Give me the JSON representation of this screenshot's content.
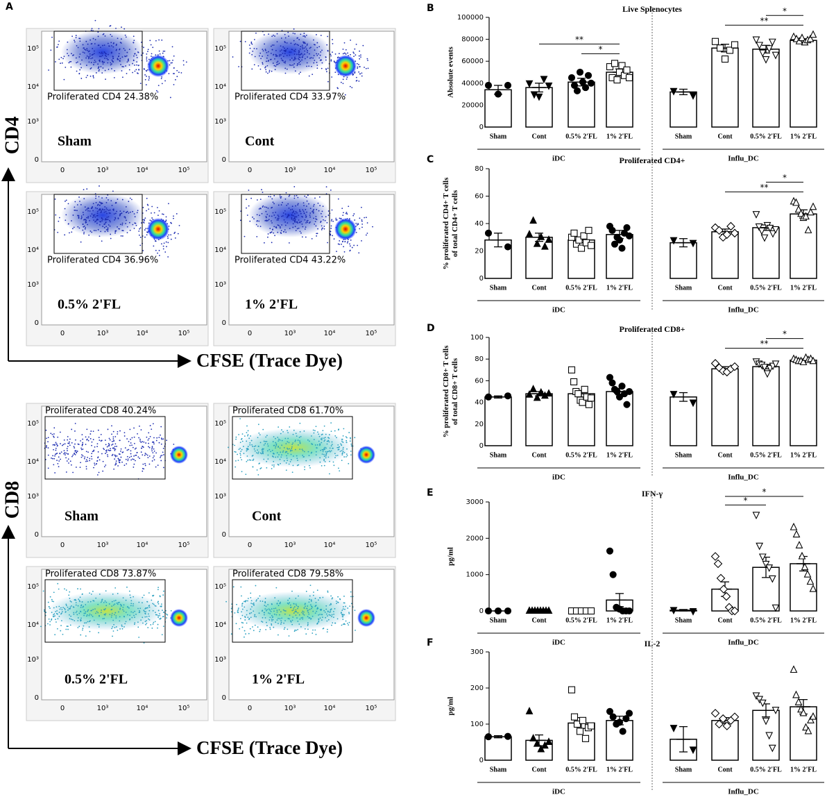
{
  "panel_a": {
    "label": "A",
    "x_tick_labels": [
      "0",
      "10³",
      "10⁴",
      "10⁵"
    ],
    "y_tick_labels": [
      "10⁵",
      "10⁴",
      "10³",
      "0"
    ],
    "cd4": {
      "y_axis_label": "CD4",
      "x_axis_label": "CFSE (Trace Dye)",
      "plots": [
        {
          "name": "Sham",
          "gate": "Proliferated CD4 24.38%"
        },
        {
          "name": "Cont",
          "gate": "Proliferated CD4 33.97%"
        },
        {
          "name": "0.5% 2'FL",
          "gate": "Proliferated CD4 36.96%"
        },
        {
          "name": "1% 2'FL",
          "gate": "Proliferated CD4 43.22%"
        }
      ]
    },
    "cd8": {
      "y_axis_label": "CD8",
      "x_axis_label": "CFSE (Trace Dye)",
      "plots": [
        {
          "name": "Sham",
          "gate": "Proliferated CD8 40.24%"
        },
        {
          "name": "Cont",
          "gate": "Proliferated CD8 61.70%"
        },
        {
          "name": "0.5% 2'FL",
          "gate": "Proliferated CD8 73.87%"
        },
        {
          "name": "1% 2'FL",
          "gate": "Proliferated CD8 79.58%"
        }
      ]
    }
  },
  "chart_data": [
    {
      "type": "bar",
      "label": "B",
      "title": "Live Splenocytes",
      "ylabel": [
        "Absolute events"
      ],
      "ylim": [
        0,
        100000
      ],
      "yticks": [
        0,
        20000,
        40000,
        60000,
        80000,
        100000
      ],
      "groups": [
        {
          "name": "iDC",
          "categories": [
            "Sham",
            "Cont",
            "0.5% 2'FL",
            "1% 2'FL"
          ],
          "values": [
            34000,
            36000,
            41000,
            50000
          ],
          "errors": [
            4000,
            4000,
            3500,
            3000
          ],
          "markers": [
            "circle",
            "triangle-down",
            "circle",
            "square-open"
          ],
          "points": [
            [
              38000,
              30000,
              38000
            ],
            [
              40000,
              30000,
              28000,
              44000,
              38000
            ],
            [
              45000,
              38000,
              33000,
              50000,
              41000,
              36000,
              47000,
              40000
            ],
            [
              55000,
              45000,
              58000,
              43000,
              50000,
              56000,
              47000,
              52000,
              45000
            ]
          ]
        },
        {
          "name": "Influ_DC",
          "categories": [
            "Sham",
            "Cont",
            "0.5% 2'FL",
            "1% 2'FL"
          ],
          "values": [
            32000,
            72000,
            71000,
            79000
          ],
          "errors": [
            2500,
            3500,
            3500,
            1500
          ],
          "markers": [
            "triangle-down",
            "square-open",
            "triangle-down-open",
            "triangle-up-open"
          ],
          "points": [
            [
              33000,
              29000
            ],
            [
              78000,
              72000,
              62000,
              70000,
              75000
            ],
            [
              80000,
              75000,
              68000,
              62000,
              72000,
              78000,
              66000
            ],
            [
              82000,
              80000,
              78000,
              81000,
              77000,
              79000,
              80000,
              84000
            ]
          ]
        }
      ],
      "significance": [
        {
          "group": 0,
          "from": 2,
          "to": 3,
          "label": "*"
        },
        {
          "group": 0,
          "from": 1,
          "to": 3,
          "label": "**"
        },
        {
          "group": 1,
          "from": 1,
          "to": 3,
          "label": "**"
        },
        {
          "group": 1,
          "from": 2,
          "to": 3,
          "label": "*"
        }
      ]
    },
    {
      "type": "bar",
      "label": "C",
      "title": "Proliferated CD4+",
      "ylabel": [
        "% proliferated CD4+ T cells",
        "of total CD4+ T cells"
      ],
      "ylim": [
        0,
        80
      ],
      "yticks": [
        0,
        20,
        40,
        60,
        80
      ],
      "groups": [
        {
          "name": "iDC",
          "categories": [
            "Sham",
            "Cont",
            "0.5% 2'FL",
            "1% 2'FL"
          ],
          "values": [
            28,
            30,
            28,
            32
          ],
          "errors": [
            5,
            3,
            2,
            3
          ],
          "markers": [
            "circle",
            "triangle-up",
            "square-open",
            "circle"
          ],
          "points": [
            [
              33,
              23
            ],
            [
              32,
              42,
              25,
              30,
              23,
              28
            ],
            [
              30,
              33,
              25,
              28,
              22,
              31,
              26,
              35,
              24
            ],
            [
              38,
              35,
              25,
              30,
              28,
              22,
              33,
              37,
              31
            ]
          ]
        },
        {
          "name": "Influ_DC",
          "categories": [
            "Sham",
            "Cont",
            "0.5% 2'FL",
            "1% 2'FL"
          ],
          "values": [
            26,
            34,
            37,
            47
          ],
          "errors": [
            3,
            2,
            2,
            3
          ],
          "markers": [
            "triangle-down",
            "diamond-open",
            "triangle-down-open",
            "triangle-up-open"
          ],
          "points": [
            [
              28,
              26
            ],
            [
              37,
              35,
              30,
              32,
              38,
              33
            ],
            [
              47,
              38,
              35,
              30,
              39,
              37,
              33,
              36
            ],
            [
              56,
              55,
              50,
              47,
              44,
              45,
              35,
              48,
              52
            ]
          ]
        }
      ],
      "significance": [
        {
          "group": 1,
          "from": 1,
          "to": 3,
          "label": "**"
        },
        {
          "group": 1,
          "from": 2,
          "to": 3,
          "label": "*"
        }
      ]
    },
    {
      "type": "bar",
      "label": "D",
      "title": "Proliferated CD8+",
      "ylabel": [
        "% proliferated CD8+ T cells",
        "of total CD8+ T cells"
      ],
      "ylim": [
        0,
        100
      ],
      "yticks": [
        0,
        20,
        40,
        60,
        80,
        100
      ],
      "groups": [
        {
          "name": "iDC",
          "categories": [
            "Sham",
            "Cont",
            "0.5% 2'FL",
            "1% 2'FL"
          ],
          "values": [
            45,
            48,
            48,
            50
          ],
          "errors": [
            1,
            2,
            3,
            3
          ],
          "markers": [
            "circle",
            "triangle-up",
            "square-open",
            "circle"
          ],
          "points": [
            [
              45,
              46
            ],
            [
              47,
              52,
              44,
              49,
              46,
              48
            ],
            [
              70,
              59,
              50,
              48,
              42,
              40,
              52,
              45,
              38,
              44
            ],
            [
              63,
              58,
              52,
              50,
              45,
              55,
              48,
              38,
              50
            ]
          ]
        },
        {
          "name": "Influ_DC",
          "categories": [
            "Sham",
            "Cont",
            "0.5% 2'FL",
            "1% 2'FL"
          ],
          "values": [
            45,
            71,
            73,
            79
          ],
          "errors": [
            4,
            2,
            2,
            1
          ],
          "markers": [
            "triangle-down",
            "diamond-open",
            "triangle-down-open",
            "triangle-up-open"
          ],
          "points": [
            [
              48,
              40
            ],
            [
              76,
              72,
              69,
              68,
              71,
              73
            ],
            [
              78,
              76,
              75,
              73,
              67,
              72,
              74,
              76
            ],
            [
              80,
              79,
              78,
              78,
              77,
              81,
              79,
              80,
              78
            ]
          ]
        }
      ],
      "significance": [
        {
          "group": 1,
          "from": 1,
          "to": 3,
          "label": "**"
        },
        {
          "group": 1,
          "from": 2,
          "to": 3,
          "label": "*"
        }
      ]
    },
    {
      "type": "bar",
      "label": "E",
      "title": "IFN-γ",
      "ylabel": [
        "pg/ml"
      ],
      "ylim": [
        0,
        3000
      ],
      "yticks": [
        0,
        1000,
        2000,
        3000
      ],
      "groups": [
        {
          "name": "iDC",
          "categories": [
            "Sham",
            "Cont",
            "0.5% 2'FL",
            "1% 2'FL"
          ],
          "values": [
            0,
            0,
            0,
            300
          ],
          "errors": [
            0,
            0,
            0,
            180
          ],
          "markers": [
            "circle",
            "triangle-up",
            "square-open",
            "circle"
          ],
          "points": [
            [
              0,
              0,
              0
            ],
            [
              0,
              0,
              0,
              0,
              0,
              0,
              0,
              0
            ],
            [
              0,
              0,
              0,
              0,
              0
            ],
            [
              1650,
              1000,
              100,
              50,
              0,
              0,
              0
            ]
          ]
        },
        {
          "name": "Influ_DC",
          "categories": [
            "Sham",
            "Cont",
            "0.5% 2'FL",
            "1% 2'FL"
          ],
          "values": [
            20,
            600,
            1200,
            1300
          ],
          "errors": [
            20,
            200,
            280,
            200
          ],
          "markers": [
            "triangle-down",
            "diamond-open",
            "triangle-down-open",
            "triangle-up-open"
          ],
          "points": [
            [
              30,
              0
            ],
            [
              1500,
              1300,
              900,
              600,
              400,
              100,
              0,
              0
            ],
            [
              2650,
              1800,
              1500,
              1300,
              1200,
              900,
              100
            ],
            [
              2300,
              2100,
              1800,
              1500,
              1200,
              1000,
              800,
              600
            ]
          ]
        }
      ],
      "significance": [
        {
          "group": 1,
          "from": 1,
          "to": 2,
          "label": "*"
        },
        {
          "group": 1,
          "from": 1,
          "to": 3,
          "label": "*"
        }
      ]
    },
    {
      "type": "bar",
      "label": "F",
      "title": "IL-2",
      "ylabel": [
        "pg/ml"
      ],
      "ylim": [
        0,
        300
      ],
      "yticks": [
        0,
        100,
        200,
        300
      ],
      "groups": [
        {
          "name": "iDC",
          "categories": [
            "Sham",
            "Cont",
            "0.5% 2'FL",
            "1% 2'FL"
          ],
          "values": [
            65,
            55,
            103,
            110
          ],
          "errors": [
            3,
            15,
            15,
            12
          ],
          "markers": [
            "circle",
            "triangle-up",
            "square-open",
            "circle"
          ],
          "points": [
            [
              65,
              66
            ],
            [
              135,
              60,
              45,
              30,
              40,
              50
            ],
            [
              195,
              120,
              100,
              80,
              110,
              60,
              90,
              95
            ],
            [
              135,
              120,
              100,
              105,
              80,
              115,
              130
            ]
          ]
        },
        {
          "name": "Influ_DC",
          "categories": [
            "Sham",
            "Cont",
            "0.5% 2'FL",
            "1% 2'FL"
          ],
          "values": [
            58,
            110,
            138,
            148
          ],
          "errors": [
            35,
            8,
            18,
            20
          ],
          "markers": [
            "triangle-down",
            "diamond-open",
            "triangle-down-open",
            "triangle-up-open"
          ],
          "points": [
            [
              90,
              30
            ],
            [
              130,
              100,
              115,
              95,
              110,
              120
            ],
            [
              180,
              170,
              160,
              110,
              70,
              35,
              140
            ],
            [
              250,
              180,
              160,
              140,
              130,
              90,
              80,
              110,
              120
            ]
          ]
        }
      ],
      "significance": []
    }
  ]
}
